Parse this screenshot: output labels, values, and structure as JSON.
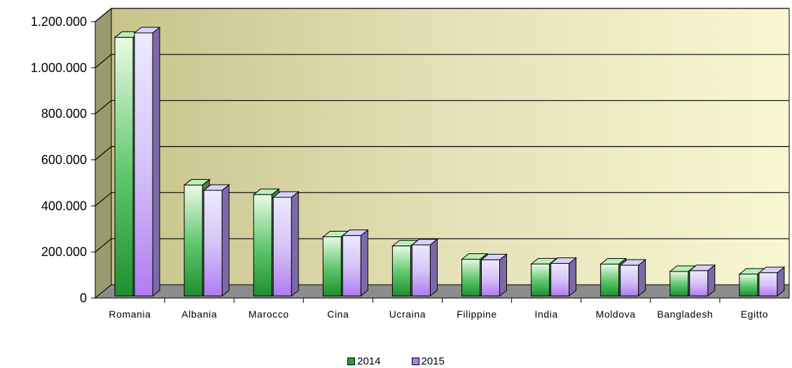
{
  "chart_data": {
    "type": "bar",
    "title": "",
    "xlabel": "",
    "ylabel": "",
    "categories": [
      "Romania",
      "Albania",
      "Marocco",
      "Cina",
      "Ucraina",
      "Filippine",
      "India",
      "Moldova",
      "Bangladesh",
      "Egitto"
    ],
    "series": [
      {
        "name": "2014",
        "color": "#2e9e3a",
        "values": [
          1131839,
          490483,
          449058,
          265820,
          226060,
          168292,
          147815,
          147388,
          115301,
          103713
        ]
      },
      {
        "name": "2015",
        "color": "#a97bf0",
        "values": [
          1151395,
          467687,
          437485,
          271330,
          230728,
          165900,
          150456,
          142266,
          118790,
          109871
        ]
      }
    ],
    "ylim": [
      0,
      1200000
    ],
    "yticks": [
      0,
      200000,
      400000,
      600000,
      800000,
      1000000,
      1200000
    ],
    "ytick_labels": [
      "0",
      "200.000",
      "400.000",
      "600.000",
      "800.000",
      "1.000.000",
      "1.200.000"
    ],
    "grid": true,
    "legend_position": "bottom-center"
  }
}
